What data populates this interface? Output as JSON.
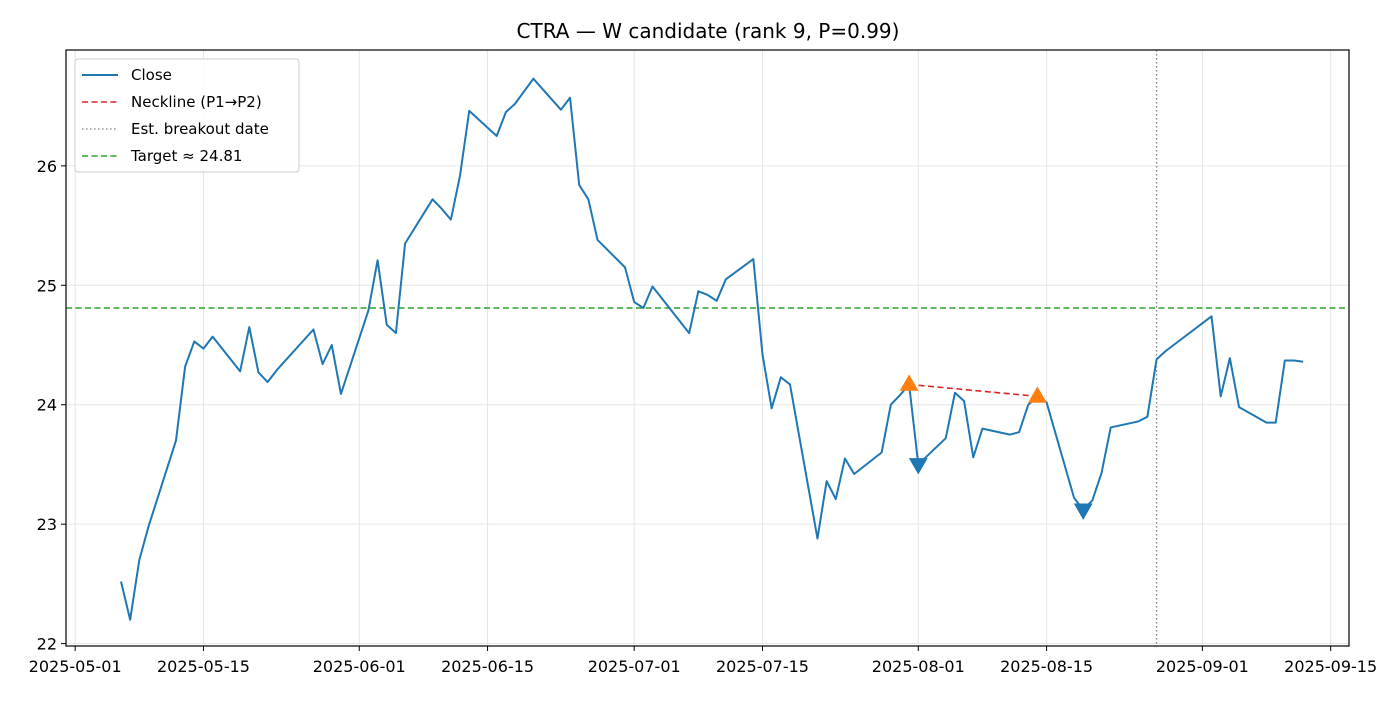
{
  "chart_data": {
    "type": "line",
    "title": "CTRA — W candidate (rank 9, P=0.99)",
    "xlabel": "",
    "ylabel": "",
    "x_axis": "date",
    "xlim": [
      "2025-04-30",
      "2025-09-17"
    ],
    "ylim": [
      21.98,
      26.97
    ],
    "xticks": [
      "2025-05-01",
      "2025-05-15",
      "2025-06-01",
      "2025-06-15",
      "2025-07-01",
      "2025-07-15",
      "2025-08-01",
      "2025-08-15",
      "2025-09-01",
      "2025-09-15"
    ],
    "yticks": [
      22,
      23,
      24,
      25,
      26
    ],
    "grid": true,
    "legend_position": "top-left",
    "series": [
      {
        "name": "Close",
        "color": "#1f77b4",
        "style": "solid",
        "points": [
          [
            "2025-05-06",
            22.52
          ],
          [
            "2025-05-07",
            22.2
          ],
          [
            "2025-05-08",
            22.7
          ],
          [
            "2025-05-09",
            22.98
          ],
          [
            "2025-05-12",
            23.7
          ],
          [
            "2025-05-13",
            24.32
          ],
          [
            "2025-05-14",
            24.53
          ],
          [
            "2025-05-15",
            24.47
          ],
          [
            "2025-05-16",
            24.57
          ],
          [
            "2025-05-19",
            24.28
          ],
          [
            "2025-05-20",
            24.65
          ],
          [
            "2025-05-21",
            24.27
          ],
          [
            "2025-05-22",
            24.19
          ],
          [
            "2025-05-23",
            24.29
          ],
          [
            "2025-05-27",
            24.63
          ],
          [
            "2025-05-28",
            24.34
          ],
          [
            "2025-05-29",
            24.5
          ],
          [
            "2025-05-30",
            24.09
          ],
          [
            "2025-06-02",
            24.79
          ],
          [
            "2025-06-03",
            25.21
          ],
          [
            "2025-06-04",
            24.67
          ],
          [
            "2025-06-05",
            24.6
          ],
          [
            "2025-06-06",
            25.35
          ],
          [
            "2025-06-09",
            25.72
          ],
          [
            "2025-06-10",
            25.64
          ],
          [
            "2025-06-11",
            25.55
          ],
          [
            "2025-06-12",
            25.92
          ],
          [
            "2025-06-13",
            26.46
          ],
          [
            "2025-06-16",
            26.25
          ],
          [
            "2025-06-17",
            26.45
          ],
          [
            "2025-06-18",
            26.52
          ],
          [
            "2025-06-20",
            26.73
          ],
          [
            "2025-06-23",
            26.47
          ],
          [
            "2025-06-24",
            26.57
          ],
          [
            "2025-06-25",
            25.84
          ],
          [
            "2025-06-26",
            25.72
          ],
          [
            "2025-06-27",
            25.38
          ],
          [
            "2025-06-30",
            25.15
          ],
          [
            "2025-07-01",
            24.86
          ],
          [
            "2025-07-02",
            24.81
          ],
          [
            "2025-07-03",
            24.99
          ],
          [
            "2025-07-07",
            24.6
          ],
          [
            "2025-07-08",
            24.95
          ],
          [
            "2025-07-09",
            24.92
          ],
          [
            "2025-07-10",
            24.87
          ],
          [
            "2025-07-11",
            25.05
          ],
          [
            "2025-07-14",
            25.22
          ],
          [
            "2025-07-15",
            24.42
          ],
          [
            "2025-07-16",
            23.97
          ],
          [
            "2025-07-17",
            24.23
          ],
          [
            "2025-07-18",
            24.17
          ],
          [
            "2025-07-21",
            22.88
          ],
          [
            "2025-07-22",
            23.36
          ],
          [
            "2025-07-23",
            23.21
          ],
          [
            "2025-07-24",
            23.55
          ],
          [
            "2025-07-25",
            23.42
          ],
          [
            "2025-07-28",
            23.6
          ],
          [
            "2025-07-29",
            24.0
          ],
          [
            "2025-07-30",
            24.08
          ],
          [
            "2025-07-31",
            24.17
          ],
          [
            "2025-08-01",
            23.5
          ],
          [
            "2025-08-04",
            23.72
          ],
          [
            "2025-08-05",
            24.1
          ],
          [
            "2025-08-06",
            24.03
          ],
          [
            "2025-08-07",
            23.56
          ],
          [
            "2025-08-08",
            23.8
          ],
          [
            "2025-08-11",
            23.75
          ],
          [
            "2025-08-12",
            23.77
          ],
          [
            "2025-08-13",
            24.0
          ],
          [
            "2025-08-14",
            24.07
          ],
          [
            "2025-08-15",
            24.02
          ],
          [
            "2025-08-18",
            23.22
          ],
          [
            "2025-08-19",
            23.12
          ],
          [
            "2025-08-20",
            23.2
          ],
          [
            "2025-08-21",
            23.43
          ],
          [
            "2025-08-22",
            23.81
          ],
          [
            "2025-08-25",
            23.86
          ],
          [
            "2025-08-26",
            23.9
          ],
          [
            "2025-08-27",
            24.38
          ],
          [
            "2025-08-28",
            24.45
          ],
          [
            "2025-09-02",
            24.74
          ],
          [
            "2025-09-03",
            24.07
          ],
          [
            "2025-09-04",
            24.39
          ],
          [
            "2025-09-05",
            23.98
          ],
          [
            "2025-09-08",
            23.85
          ],
          [
            "2025-09-09",
            23.85
          ],
          [
            "2025-09-10",
            24.37
          ],
          [
            "2025-09-11",
            24.37
          ],
          [
            "2025-09-12",
            24.36
          ]
        ]
      },
      {
        "name": "Neckline (P1→P2)",
        "color": "#d62728",
        "style": "dashed",
        "points": [
          [
            "2025-07-31",
            24.17
          ],
          [
            "2025-08-14",
            24.07
          ]
        ]
      }
    ],
    "hlines": [
      {
        "name": "Target ≈ 24.81",
        "y": 24.81,
        "color": "#2ca02c",
        "style": "dashed"
      }
    ],
    "vlines": [
      {
        "name": "Est. breakout date",
        "x": "2025-08-27",
        "color": "#808080",
        "style": "dotted"
      }
    ],
    "markers": [
      {
        "kind": "peak",
        "shape": "triangle-up",
        "color": "#ff7f0e",
        "x": "2025-07-31",
        "y": 24.17
      },
      {
        "kind": "peak",
        "shape": "triangle-up",
        "color": "#ff7f0e",
        "x": "2025-08-14",
        "y": 24.07
      },
      {
        "kind": "trough",
        "shape": "triangle-down",
        "color": "#1f77b4",
        "x": "2025-08-01",
        "y": 23.5
      },
      {
        "kind": "trough",
        "shape": "triangle-down",
        "color": "#1f77b4",
        "x": "2025-08-19",
        "y": 23.12
      }
    ],
    "legend": [
      "Close",
      "Neckline (P1→P2)",
      "Est. breakout date",
      "Target ≈ 24.81"
    ]
  }
}
